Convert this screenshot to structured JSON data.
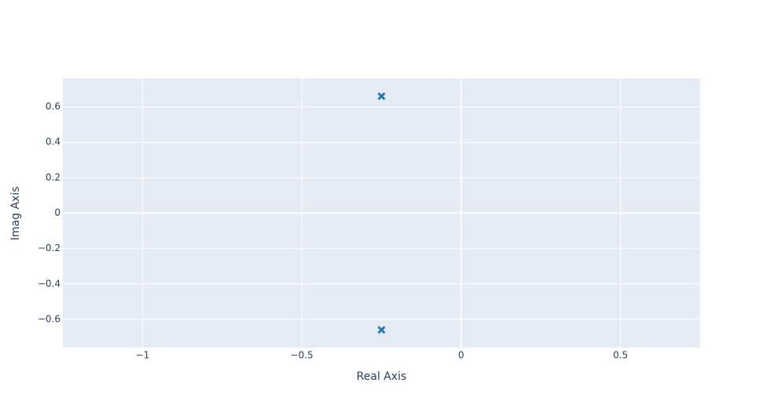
{
  "chart_data": {
    "type": "scatter",
    "x": [
      -0.25,
      -0.25
    ],
    "values": [
      0.66,
      -0.66
    ],
    "color": "#1f77b4",
    "xlabel": "Real Axis",
    "ylabel": "Imag Axis",
    "xlim": [
      -1.25,
      0.75
    ],
    "xticks": [
      {
        "value": -1,
        "label": "−1"
      },
      {
        "value": -0.5,
        "label": "−0.5"
      },
      0,
      0.5
    ],
    "ylim": [
      -0.76,
      0.76
    ],
    "yticks": [
      {
        "value": -0.6,
        "label": "−0.6"
      },
      {
        "value": -0.4,
        "label": "−0.4"
      },
      {
        "value": -0.2,
        "label": "−0.2"
      },
      0,
      0.2,
      0.4,
      0.6
    ],
    "grid": true
  }
}
